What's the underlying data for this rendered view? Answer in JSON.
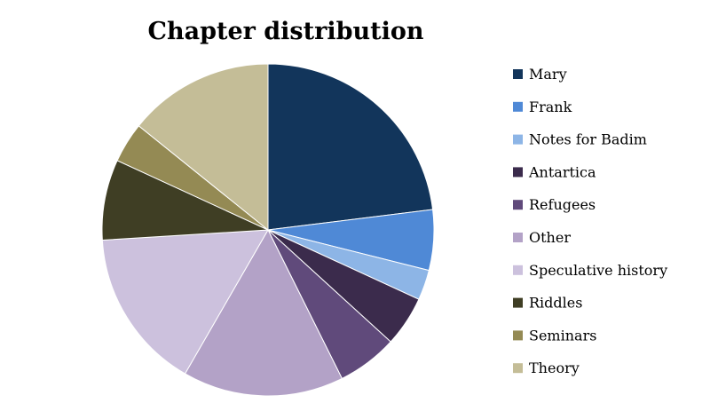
{
  "chart_data": {
    "type": "pie",
    "title": "Chapter distribution",
    "legend_position": "right",
    "start_angle_deg": 0,
    "direction": "clockwise",
    "slices": [
      {
        "label": "Mary",
        "value": 23.5,
        "color": "#12355b"
      },
      {
        "label": "Frank",
        "value": 6.0,
        "color": "#4f89d6"
      },
      {
        "label": "Notes for Badim",
        "value": 3.0,
        "color": "#8db5e6"
      },
      {
        "label": "Antartica",
        "value": 5.0,
        "color": "#3b2b4c"
      },
      {
        "label": "Refugees",
        "value": 6.0,
        "color": "#604a7b"
      },
      {
        "label": "Other",
        "value": 16.0,
        "color": "#b3a2c7"
      },
      {
        "label": "Speculative history",
        "value": 16.0,
        "color": "#ccc1dd"
      },
      {
        "label": "Riddles",
        "value": 8.0,
        "color": "#3f3e24"
      },
      {
        "label": "Seminars",
        "value": 4.0,
        "color": "#948a54"
      },
      {
        "label": "Theory",
        "value": 14.5,
        "color": "#c4bd97"
      }
    ]
  }
}
